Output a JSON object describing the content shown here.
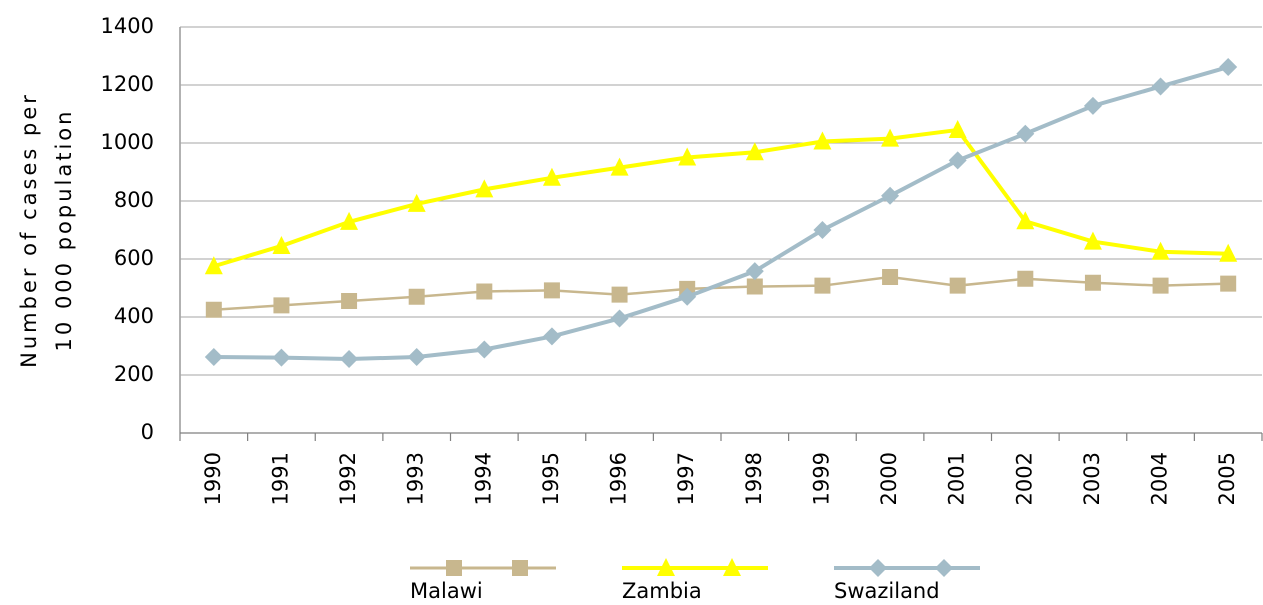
{
  "chart_data": {
    "type": "line",
    "y_label": [
      "Number of cases per",
      "10 000 population"
    ],
    "categories": [
      "1990",
      "1991",
      "1992",
      "1993",
      "1994",
      "1995",
      "1996",
      "1997",
      "1998",
      "1999",
      "2000",
      "2001",
      "2002",
      "2003",
      "2004",
      "2005"
    ],
    "series": [
      {
        "name": "Malawi",
        "color": "#c8b78e",
        "marker": "square",
        "values": [
          425,
          440,
          455,
          470,
          488,
          492,
          477,
          497,
          505,
          508,
          538,
          508,
          532,
          518,
          508,
          515
        ]
      },
      {
        "name": "Zambia",
        "color": "#ffff00",
        "marker": "triangle",
        "values": [
          575,
          645,
          728,
          790,
          840,
          880,
          915,
          950,
          968,
          1005,
          1015,
          1045,
          730,
          660,
          625,
          618
        ]
      },
      {
        "name": "Swaziland",
        "color": "#a3bcc8",
        "marker": "diamond",
        "values": [
          262,
          260,
          255,
          262,
          288,
          333,
          395,
          470,
          558,
          700,
          818,
          940,
          1032,
          1128,
          1195,
          1262
        ]
      }
    ],
    "ylim": [
      0,
      1400
    ],
    "yticks": [
      0,
      200,
      400,
      600,
      800,
      1000,
      1200,
      1400
    ],
    "grid": true,
    "legend": "bottom"
  }
}
